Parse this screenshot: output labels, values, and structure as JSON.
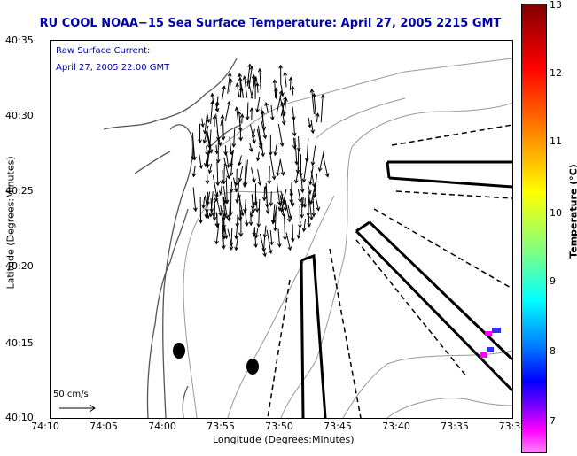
{
  "title": "RU COOL  NOAA−15  Sea Surface Temperature:  April 27, 2005 2215 GMT",
  "legend": {
    "line1": "Raw Surface Current:",
    "line2": "April 27, 2005 22:00 GMT"
  },
  "scale_label": "50 cm/s",
  "axes": {
    "xlabel": "Longitude (Degrees:Minutes)",
    "ylabel": "Latitude (Degrees:Minutes)",
    "xticks": [
      "74:10",
      "74:05",
      "74:00",
      "73:55",
      "73:50",
      "73:45",
      "73:40",
      "73:35",
      "73:3"
    ],
    "yticks": [
      "40:35",
      "40:30",
      "40:25",
      "40:20",
      "40:15",
      "40:10"
    ]
  },
  "colorbar": {
    "label": "Temperature (°C)",
    "ticks": [
      "13",
      "12",
      "11",
      "10",
      "9",
      "8",
      "7"
    ],
    "range": [
      6.6,
      13
    ]
  },
  "colors": {
    "title": "#0000aa",
    "legend": "#0000aa",
    "contour": "#999999",
    "coast": "#555555",
    "arrows": "#000000"
  },
  "icons": [
    "arrow-icon"
  ]
}
